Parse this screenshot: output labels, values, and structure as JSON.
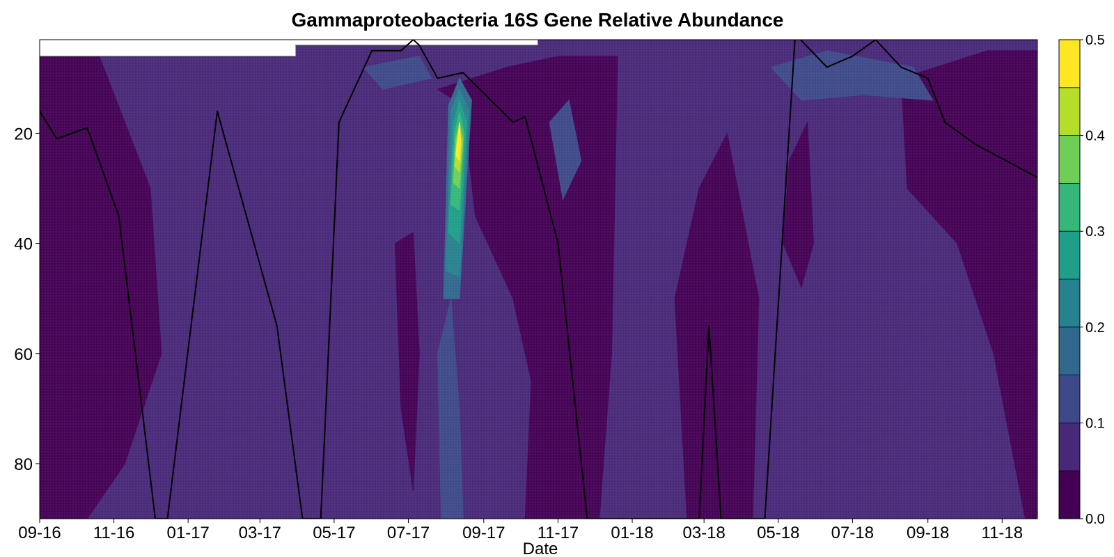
{
  "chart_data": {
    "type": "heatmap",
    "title": "Gammaproteobacteria 16S Gene Relative Abundance",
    "xlabel": "Date",
    "ylabel": "",
    "x_ticks": [
      "09-16",
      "11-16",
      "01-17",
      "03-17",
      "05-17",
      "07-17",
      "09-17",
      "11-17",
      "01-18",
      "03-18",
      "05-18",
      "07-18",
      "09-18",
      "11-18"
    ],
    "y_ticks": [
      20,
      40,
      60,
      80
    ],
    "ylim": [
      90,
      3
    ],
    "xlim": [
      "2016-09-01",
      "2018-11-30"
    ],
    "colorbar": {
      "ticks": [
        0.0,
        0.1,
        0.2,
        0.3,
        0.4,
        0.5
      ],
      "levels": [
        0.0,
        0.05,
        0.1,
        0.15,
        0.2,
        0.25,
        0.3,
        0.35,
        0.4,
        0.45,
        0.5
      ],
      "colors": [
        "#440154",
        "#482878",
        "#3e4989",
        "#31688e",
        "#26828e",
        "#1f9e89",
        "#35b779",
        "#6ece58",
        "#b5de2b",
        "#fde725"
      ]
    },
    "regions": [
      {
        "name": "background",
        "level": 1,
        "points": [
          [
            "2016-09-01",
            3
          ],
          [
            "2018-11-30",
            3
          ],
          [
            "2018-11-30",
            90
          ],
          [
            "2016-09-01",
            90
          ]
        ]
      },
      {
        "name": "low-band-a",
        "level": 0,
        "points": [
          [
            "2016-09-01",
            6
          ],
          [
            "2016-10-20",
            6
          ],
          [
            "2016-12-01",
            30
          ],
          [
            "2016-12-10",
            60
          ],
          [
            "2016-11-10",
            80
          ],
          [
            "2016-10-10",
            90
          ],
          [
            "2016-09-01",
            90
          ]
        ]
      },
      {
        "name": "low-band-b",
        "level": 0,
        "points": [
          [
            "2017-07-25",
            12
          ],
          [
            "2017-09-20",
            8
          ],
          [
            "2017-11-01",
            6
          ],
          [
            "2017-12-20",
            6
          ],
          [
            "2017-12-15",
            60
          ],
          [
            "2017-12-05",
            90
          ],
          [
            "2017-10-05",
            90
          ],
          [
            "2017-10-10",
            65
          ],
          [
            "2017-09-25",
            50
          ],
          [
            "2017-08-25",
            35
          ],
          [
            "2017-08-15",
            15
          ]
        ]
      },
      {
        "name": "low-band-c",
        "level": 0,
        "points": [
          [
            "2018-02-25",
            30
          ],
          [
            "2018-03-20",
            20
          ],
          [
            "2018-04-15",
            50
          ],
          [
            "2018-04-10",
            90
          ],
          [
            "2018-02-15",
            90
          ],
          [
            "2018-02-05",
            50
          ]
        ]
      },
      {
        "name": "low-band-d",
        "level": 0,
        "points": [
          [
            "2018-08-10",
            10
          ],
          [
            "2018-10-20",
            5
          ],
          [
            "2018-11-30",
            5
          ],
          [
            "2018-11-30",
            90
          ],
          [
            "2018-11-20",
            90
          ],
          [
            "2018-10-25",
            60
          ],
          [
            "2018-09-25",
            40
          ],
          [
            "2018-08-15",
            30
          ]
        ]
      },
      {
        "name": "low-strip-e",
        "level": 0,
        "points": [
          [
            "2017-06-20",
            40
          ],
          [
            "2017-07-05",
            38
          ],
          [
            "2017-07-10",
            60
          ],
          [
            "2017-07-05",
            85
          ],
          [
            "2017-06-25",
            70
          ]
        ]
      },
      {
        "name": "low-strip-f",
        "level": 0,
        "points": [
          [
            "2018-05-10",
            25
          ],
          [
            "2018-05-25",
            18
          ],
          [
            "2018-05-30",
            40
          ],
          [
            "2018-05-20",
            48
          ],
          [
            "2018-05-05",
            40
          ]
        ]
      },
      {
        "name": "mid-patch-a",
        "level": 2,
        "points": [
          [
            "2017-05-25",
            8
          ],
          [
            "2017-07-10",
            6
          ],
          [
            "2017-07-20",
            10
          ],
          [
            "2017-06-10",
            12
          ]
        ]
      },
      {
        "name": "mid-patch-b",
        "level": 2,
        "points": [
          [
            "2018-04-25",
            8
          ],
          [
            "2018-06-10",
            5
          ],
          [
            "2018-08-20",
            8
          ],
          [
            "2018-09-05",
            14
          ],
          [
            "2018-07-10",
            13
          ],
          [
            "2018-05-20",
            14
          ]
        ]
      },
      {
        "name": "mid-patch-c",
        "level": 2,
        "points": [
          [
            "2017-10-25",
            18
          ],
          [
            "2017-11-10",
            14
          ],
          [
            "2017-11-20",
            25
          ],
          [
            "2017-11-05",
            32
          ]
        ]
      },
      {
        "name": "peak-0",
        "level": 2,
        "points": [
          [
            "2017-07-25",
            60
          ],
          [
            "2017-08-05",
            50
          ],
          [
            "2017-08-12",
            70
          ],
          [
            "2017-08-15",
            90
          ],
          [
            "2017-07-28",
            90
          ]
        ]
      },
      {
        "name": "peak-1",
        "level": 3,
        "points": [
          [
            "2017-07-30",
            50
          ],
          [
            "2017-08-03",
            15
          ],
          [
            "2017-08-12",
            10
          ],
          [
            "2017-08-22",
            14
          ],
          [
            "2017-08-12",
            50
          ]
        ]
      },
      {
        "name": "peak-2",
        "level": 4,
        "points": [
          [
            "2017-08-01",
            45
          ],
          [
            "2017-08-05",
            16
          ],
          [
            "2017-08-12",
            12
          ],
          [
            "2017-08-20",
            16
          ],
          [
            "2017-08-12",
            46
          ]
        ]
      },
      {
        "name": "peak-3",
        "level": 5,
        "points": [
          [
            "2017-08-03",
            38
          ],
          [
            "2017-08-07",
            18
          ],
          [
            "2017-08-12",
            14
          ],
          [
            "2017-08-18",
            18
          ],
          [
            "2017-08-12",
            40
          ]
        ]
      },
      {
        "name": "peak-4",
        "level": 6,
        "points": [
          [
            "2017-08-05",
            33
          ],
          [
            "2017-08-08",
            20
          ],
          [
            "2017-08-12",
            16
          ],
          [
            "2017-08-16",
            20
          ],
          [
            "2017-08-12",
            34
          ]
        ]
      },
      {
        "name": "peak-5",
        "level": 7,
        "points": [
          [
            "2017-08-07",
            29
          ],
          [
            "2017-08-09",
            21
          ],
          [
            "2017-08-12",
            18
          ],
          [
            "2017-08-15",
            21
          ],
          [
            "2017-08-12",
            30
          ]
        ]
      },
      {
        "name": "peak-6",
        "level": 8,
        "points": [
          [
            "2017-08-08",
            26
          ],
          [
            "2017-08-10",
            21
          ],
          [
            "2017-08-12",
            19
          ],
          [
            "2017-08-14",
            22
          ],
          [
            "2017-08-12",
            27
          ]
        ]
      },
      {
        "name": "peak-7",
        "level": 9,
        "points": [
          [
            "2017-08-09",
            24
          ],
          [
            "2017-08-11",
            20
          ],
          [
            "2017-08-12",
            18
          ],
          [
            "2017-08-13",
            21
          ],
          [
            "2017-08-12",
            25
          ]
        ]
      }
    ],
    "line": [
      [
        "2016-09-01",
        16
      ],
      [
        "2016-09-15",
        21
      ],
      [
        "2016-10-10",
        19
      ],
      [
        "2016-11-05",
        35
      ],
      [
        "2016-12-05",
        90
      ],
      [
        "2016-12-15",
        90
      ],
      [
        "2017-01-25",
        16
      ],
      [
        "2017-03-15",
        55
      ],
      [
        "2017-04-05",
        90
      ],
      [
        "2017-04-20",
        90
      ],
      [
        "2017-05-05",
        18
      ],
      [
        "2017-06-01",
        5
      ],
      [
        "2017-06-25",
        5
      ],
      [
        "2017-07-05",
        3
      ],
      [
        "2017-07-10",
        4
      ],
      [
        "2017-07-25",
        10
      ],
      [
        "2017-08-15",
        9
      ],
      [
        "2017-09-25",
        18
      ],
      [
        "2017-10-05",
        17
      ],
      [
        "2017-11-01",
        40
      ],
      [
        "2017-11-25",
        90
      ],
      [
        "2018-02-25",
        90
      ],
      [
        "2018-03-05",
        55
      ],
      [
        "2018-03-15",
        90
      ],
      [
        "2018-04-20",
        90
      ],
      [
        "2018-05-15",
        2
      ],
      [
        "2018-06-10",
        8
      ],
      [
        "2018-07-01",
        6
      ],
      [
        "2018-07-20",
        3
      ],
      [
        "2018-08-10",
        8
      ],
      [
        "2018-09-01",
        10
      ],
      [
        "2018-09-15",
        18
      ],
      [
        "2018-10-10",
        22
      ],
      [
        "2018-11-30",
        28
      ]
    ],
    "white_bands": [
      {
        "from": "2016-09-01",
        "to": "2017-03-30",
        "depth": 6
      },
      {
        "from": "2017-03-30",
        "to": "2017-10-15",
        "depth": 4
      },
      {
        "from": "2017-10-15",
        "to": "2018-04-30",
        "depth": 3
      },
      {
        "from": "2018-04-30",
        "to": "2018-11-30",
        "depth": 2
      }
    ]
  }
}
